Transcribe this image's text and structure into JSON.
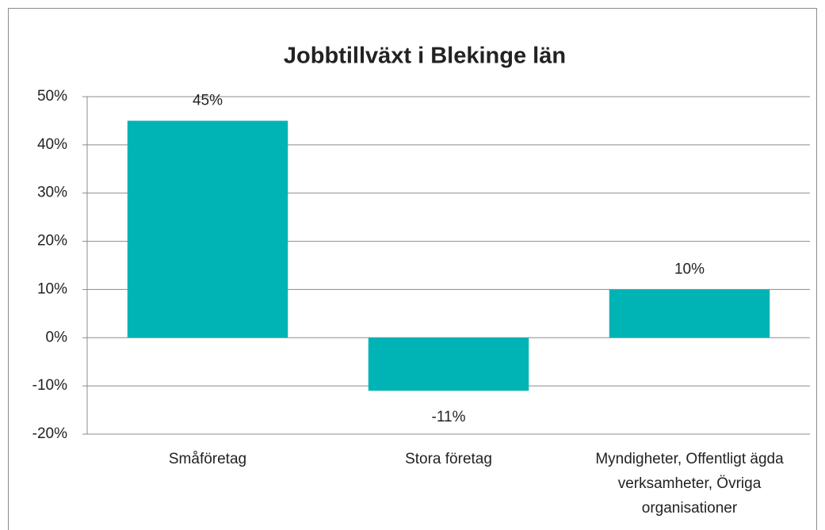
{
  "chart_data": {
    "type": "bar",
    "title": "Jobbtillväxt i Blekinge län",
    "categories": [
      "Småföretag",
      "Stora företag",
      "Myndigheter, Offentligt ägda verksamheter, Övriga organisationer"
    ],
    "values": [
      45,
      -11,
      10
    ],
    "value_labels": [
      "45%",
      "-11%",
      "10%"
    ],
    "color": "#00b3b5",
    "ylim": [
      -20,
      50
    ],
    "yticks": [
      {
        "value": -20,
        "label": "-20%"
      },
      {
        "value": -10,
        "label": "-10%"
      },
      {
        "value": 0,
        "label": "0%"
      },
      {
        "value": 10,
        "label": "10%"
      },
      {
        "value": 20,
        "label": "20%"
      },
      {
        "value": 30,
        "label": "30%"
      },
      {
        "value": 40,
        "label": "40%"
      },
      {
        "value": 50,
        "label": "50%"
      }
    ],
    "grid": true
  }
}
